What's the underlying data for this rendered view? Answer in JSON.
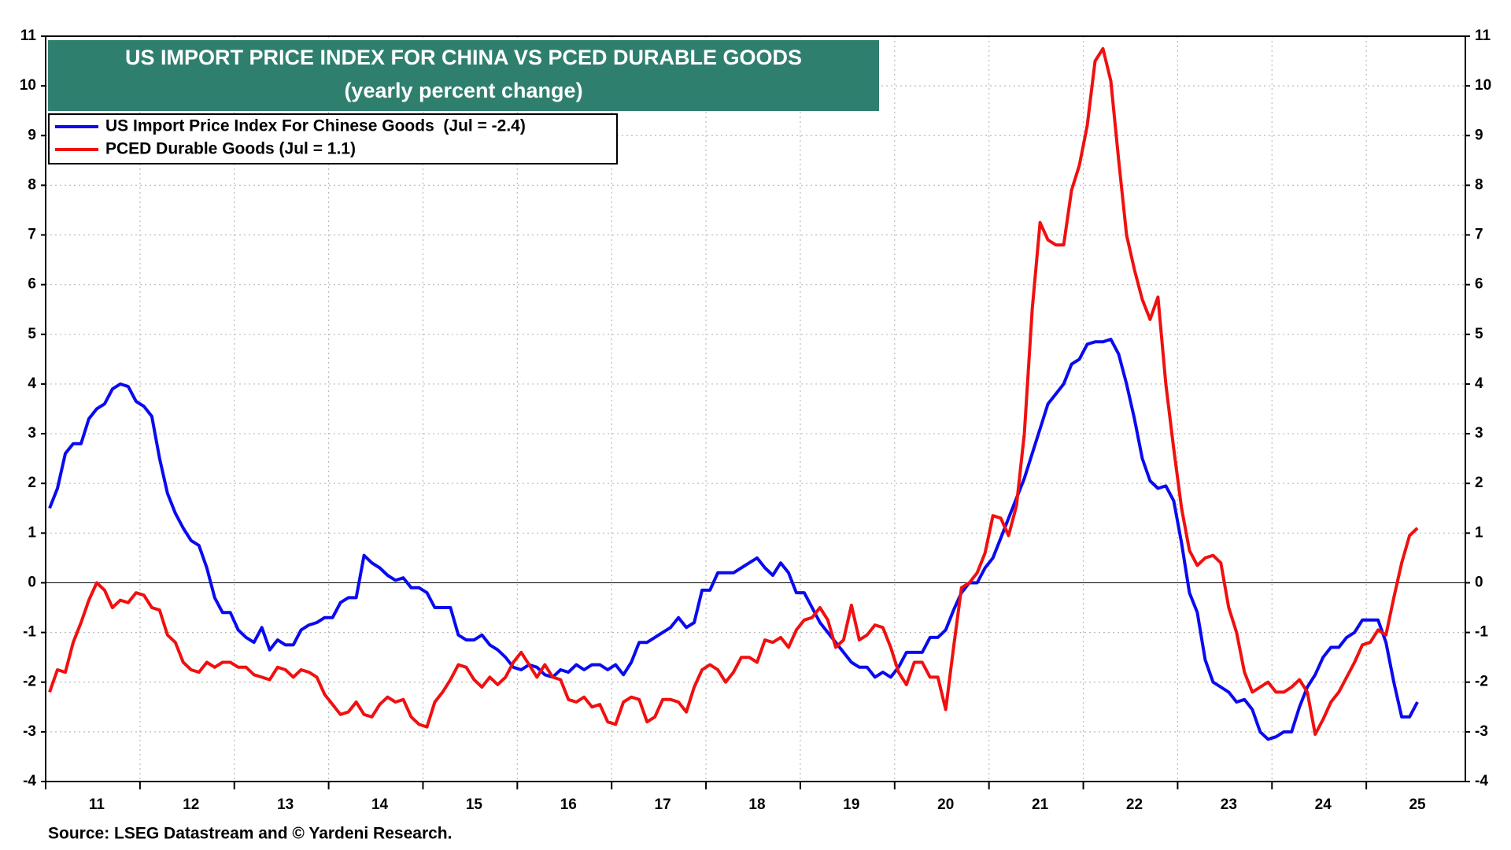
{
  "chart_data": {
    "type": "line",
    "title": "US IMPORT PRICE INDEX FOR CHINA VS PCED DURABLE GOODS",
    "subtitle": "(yearly percent change)",
    "source": "Source: LSEG Datastream and © Yardeni Research.",
    "legend": "upper left",
    "grid": true,
    "categories": [
      null,
      null,
      null,
      null,
      null,
      null,
      "11",
      null,
      null,
      null,
      null,
      null,
      null,
      null,
      null,
      null,
      null,
      null,
      "12",
      null,
      null,
      null,
      null,
      null,
      null,
      null,
      null,
      null,
      null,
      null,
      "13",
      null,
      null,
      null,
      null,
      null,
      null,
      null,
      null,
      null,
      null,
      null,
      "14",
      null,
      null,
      null,
      null,
      null,
      null,
      null,
      null,
      null,
      null,
      null,
      "15",
      null,
      null,
      null,
      null,
      null,
      null,
      null,
      null,
      null,
      null,
      null,
      "16",
      null,
      null,
      null,
      null,
      null,
      null,
      null,
      null,
      null,
      null,
      null,
      "17",
      null,
      null,
      null,
      null,
      null,
      null,
      null,
      null,
      null,
      null,
      null,
      "18",
      null,
      null,
      null,
      null,
      null,
      null,
      null,
      null,
      null,
      null,
      null,
      "19",
      null,
      null,
      null,
      null,
      null,
      null,
      null,
      null,
      null,
      null,
      null,
      "20",
      null,
      null,
      null,
      null,
      null,
      null,
      null,
      null,
      null,
      null,
      null,
      "21",
      null,
      null,
      null,
      null,
      null,
      null,
      null,
      null,
      null,
      null,
      null,
      "22",
      null,
      null,
      null,
      null,
      null,
      null,
      null,
      null,
      null,
      null,
      null,
      "23",
      null,
      null,
      null,
      null,
      null,
      null,
      null,
      null,
      null,
      null,
      null,
      "24",
      null,
      null,
      null,
      null,
      null,
      null,
      null,
      null,
      null,
      null,
      null,
      "25"
    ],
    "ylim": [
      -4,
      11
    ],
    "yticks": [
      -4,
      -3,
      -2,
      -1,
      0,
      1,
      2,
      3,
      4,
      5,
      6,
      7,
      8,
      9,
      10,
      11
    ],
    "y2lim": [
      -4,
      11
    ],
    "y2ticks": [
      -4,
      -3,
      -2,
      -1,
      0,
      1,
      2,
      3,
      4,
      5,
      6,
      7,
      8,
      9,
      10,
      11
    ],
    "series": [
      {
        "name": "US Import Price Index For Chinese Goods  (Jul = -2.4)",
        "color": "#0a0af0",
        "values": [
          1.5,
          1.9,
          2.6,
          2.8,
          2.8,
          3.3,
          3.5,
          3.6,
          3.9,
          4.0,
          3.95,
          3.65,
          3.55,
          3.35,
          2.5,
          1.8,
          1.4,
          1.1,
          0.85,
          0.75,
          0.3,
          -0.3,
          -0.6,
          -0.6,
          -0.95,
          -1.1,
          -1.2,
          -0.9,
          -1.35,
          -1.15,
          -1.25,
          -1.25,
          -0.95,
          -0.85,
          -0.8,
          -0.7,
          -0.7,
          -0.4,
          -0.3,
          -0.3,
          0.55,
          0.4,
          0.3,
          0.15,
          0.05,
          0.1,
          -0.1,
          -0.1,
          -0.2,
          -0.5,
          -0.5,
          -0.5,
          -1.05,
          -1.15,
          -1.15,
          -1.05,
          -1.25,
          -1.35,
          -1.5,
          -1.7,
          -1.75,
          -1.65,
          -1.7,
          -1.85,
          -1.9,
          -1.75,
          -1.8,
          -1.65,
          -1.75,
          -1.65,
          -1.65,
          -1.75,
          -1.65,
          -1.85,
          -1.6,
          -1.2,
          -1.2,
          -1.1,
          -1.0,
          -0.9,
          -0.7,
          -0.9,
          -0.8,
          -0.15,
          -0.15,
          0.2,
          0.2,
          0.2,
          0.3,
          0.4,
          0.5,
          0.3,
          0.15,
          0.4,
          0.2,
          -0.2,
          -0.2,
          -0.5,
          -0.8,
          -1.0,
          -1.2,
          -1.4,
          -1.6,
          -1.7,
          -1.7,
          -1.9,
          -1.8,
          -1.9,
          -1.7,
          -1.4,
          -1.4,
          -1.4,
          -1.1,
          -1.1,
          -0.95,
          -0.55,
          -0.2,
          0.0,
          0.0,
          0.3,
          0.5,
          0.9,
          1.3,
          1.7,
          2.1,
          2.6,
          3.1,
          3.6,
          3.8,
          4.0,
          4.4,
          4.5,
          4.8,
          4.85,
          4.85,
          4.9,
          4.6,
          4.0,
          3.3,
          2.5,
          2.05,
          1.9,
          1.95,
          1.65,
          0.8,
          -0.2,
          -0.6,
          -1.55,
          -2.0,
          -2.1,
          -2.2,
          -2.4,
          -2.35,
          -2.55,
          -3.0,
          -3.15,
          -3.1,
          -3.0,
          -3.0,
          -2.5,
          -2.1,
          -1.85,
          -1.5,
          -1.3,
          -1.3,
          -1.1,
          -1.0,
          -0.75,
          -0.75,
          -0.75,
          -1.2,
          -2.0,
          -2.7,
          -2.7,
          -2.4
        ]
      },
      {
        "name": "PCED Durable Goods (Jul = 1.1)",
        "color": "#f01010",
        "values": [
          -2.2,
          -1.75,
          -1.8,
          -1.2,
          -0.8,
          -0.35,
          0.0,
          -0.15,
          -0.5,
          -0.35,
          -0.4,
          -0.2,
          -0.25,
          -0.5,
          -0.55,
          -1.05,
          -1.2,
          -1.6,
          -1.75,
          -1.8,
          -1.6,
          -1.7,
          -1.6,
          -1.6,
          -1.7,
          -1.7,
          -1.85,
          -1.9,
          -1.95,
          -1.7,
          -1.75,
          -1.9,
          -1.75,
          -1.8,
          -1.9,
          -2.25,
          -2.45,
          -2.65,
          -2.6,
          -2.4,
          -2.65,
          -2.7,
          -2.45,
          -2.3,
          -2.4,
          -2.35,
          -2.7,
          -2.85,
          -2.9,
          -2.4,
          -2.2,
          -1.95,
          -1.65,
          -1.7,
          -1.95,
          -2.1,
          -1.9,
          -2.05,
          -1.9,
          -1.6,
          -1.4,
          -1.65,
          -1.9,
          -1.65,
          -1.9,
          -1.95,
          -2.35,
          -2.4,
          -2.3,
          -2.5,
          -2.45,
          -2.8,
          -2.85,
          -2.4,
          -2.3,
          -2.35,
          -2.8,
          -2.7,
          -2.35,
          -2.35,
          -2.4,
          -2.6,
          -2.1,
          -1.75,
          -1.65,
          -1.75,
          -2.0,
          -1.8,
          -1.5,
          -1.5,
          -1.6,
          -1.15,
          -1.2,
          -1.1,
          -1.3,
          -0.95,
          -0.75,
          -0.7,
          -0.5,
          -0.75,
          -1.3,
          -1.15,
          -0.45,
          -1.15,
          -1.05,
          -0.85,
          -0.9,
          -1.3,
          -1.8,
          -2.05,
          -1.6,
          -1.6,
          -1.9,
          -1.9,
          -2.55,
          -1.3,
          -0.1,
          0.0,
          0.2,
          0.6,
          1.35,
          1.3,
          0.95,
          1.55,
          3.0,
          5.5,
          7.25,
          6.9,
          6.8,
          6.8,
          7.9,
          8.4,
          9.2,
          10.5,
          10.75,
          10.1,
          8.5,
          7.0,
          6.3,
          5.7,
          5.3,
          5.75,
          4.0,
          2.7,
          1.5,
          0.65,
          0.35,
          0.5,
          0.55,
          0.4,
          -0.5,
          -1.0,
          -1.8,
          -2.2,
          -2.1,
          -2.0,
          -2.2,
          -2.2,
          -2.1,
          -1.95,
          -2.2,
          -3.05,
          -2.75,
          -2.4,
          -2.2,
          -1.9,
          -1.6,
          -1.25,
          -1.2,
          -0.95,
          -1.05,
          -0.3,
          0.4,
          0.95,
          1.1
        ]
      }
    ]
  }
}
